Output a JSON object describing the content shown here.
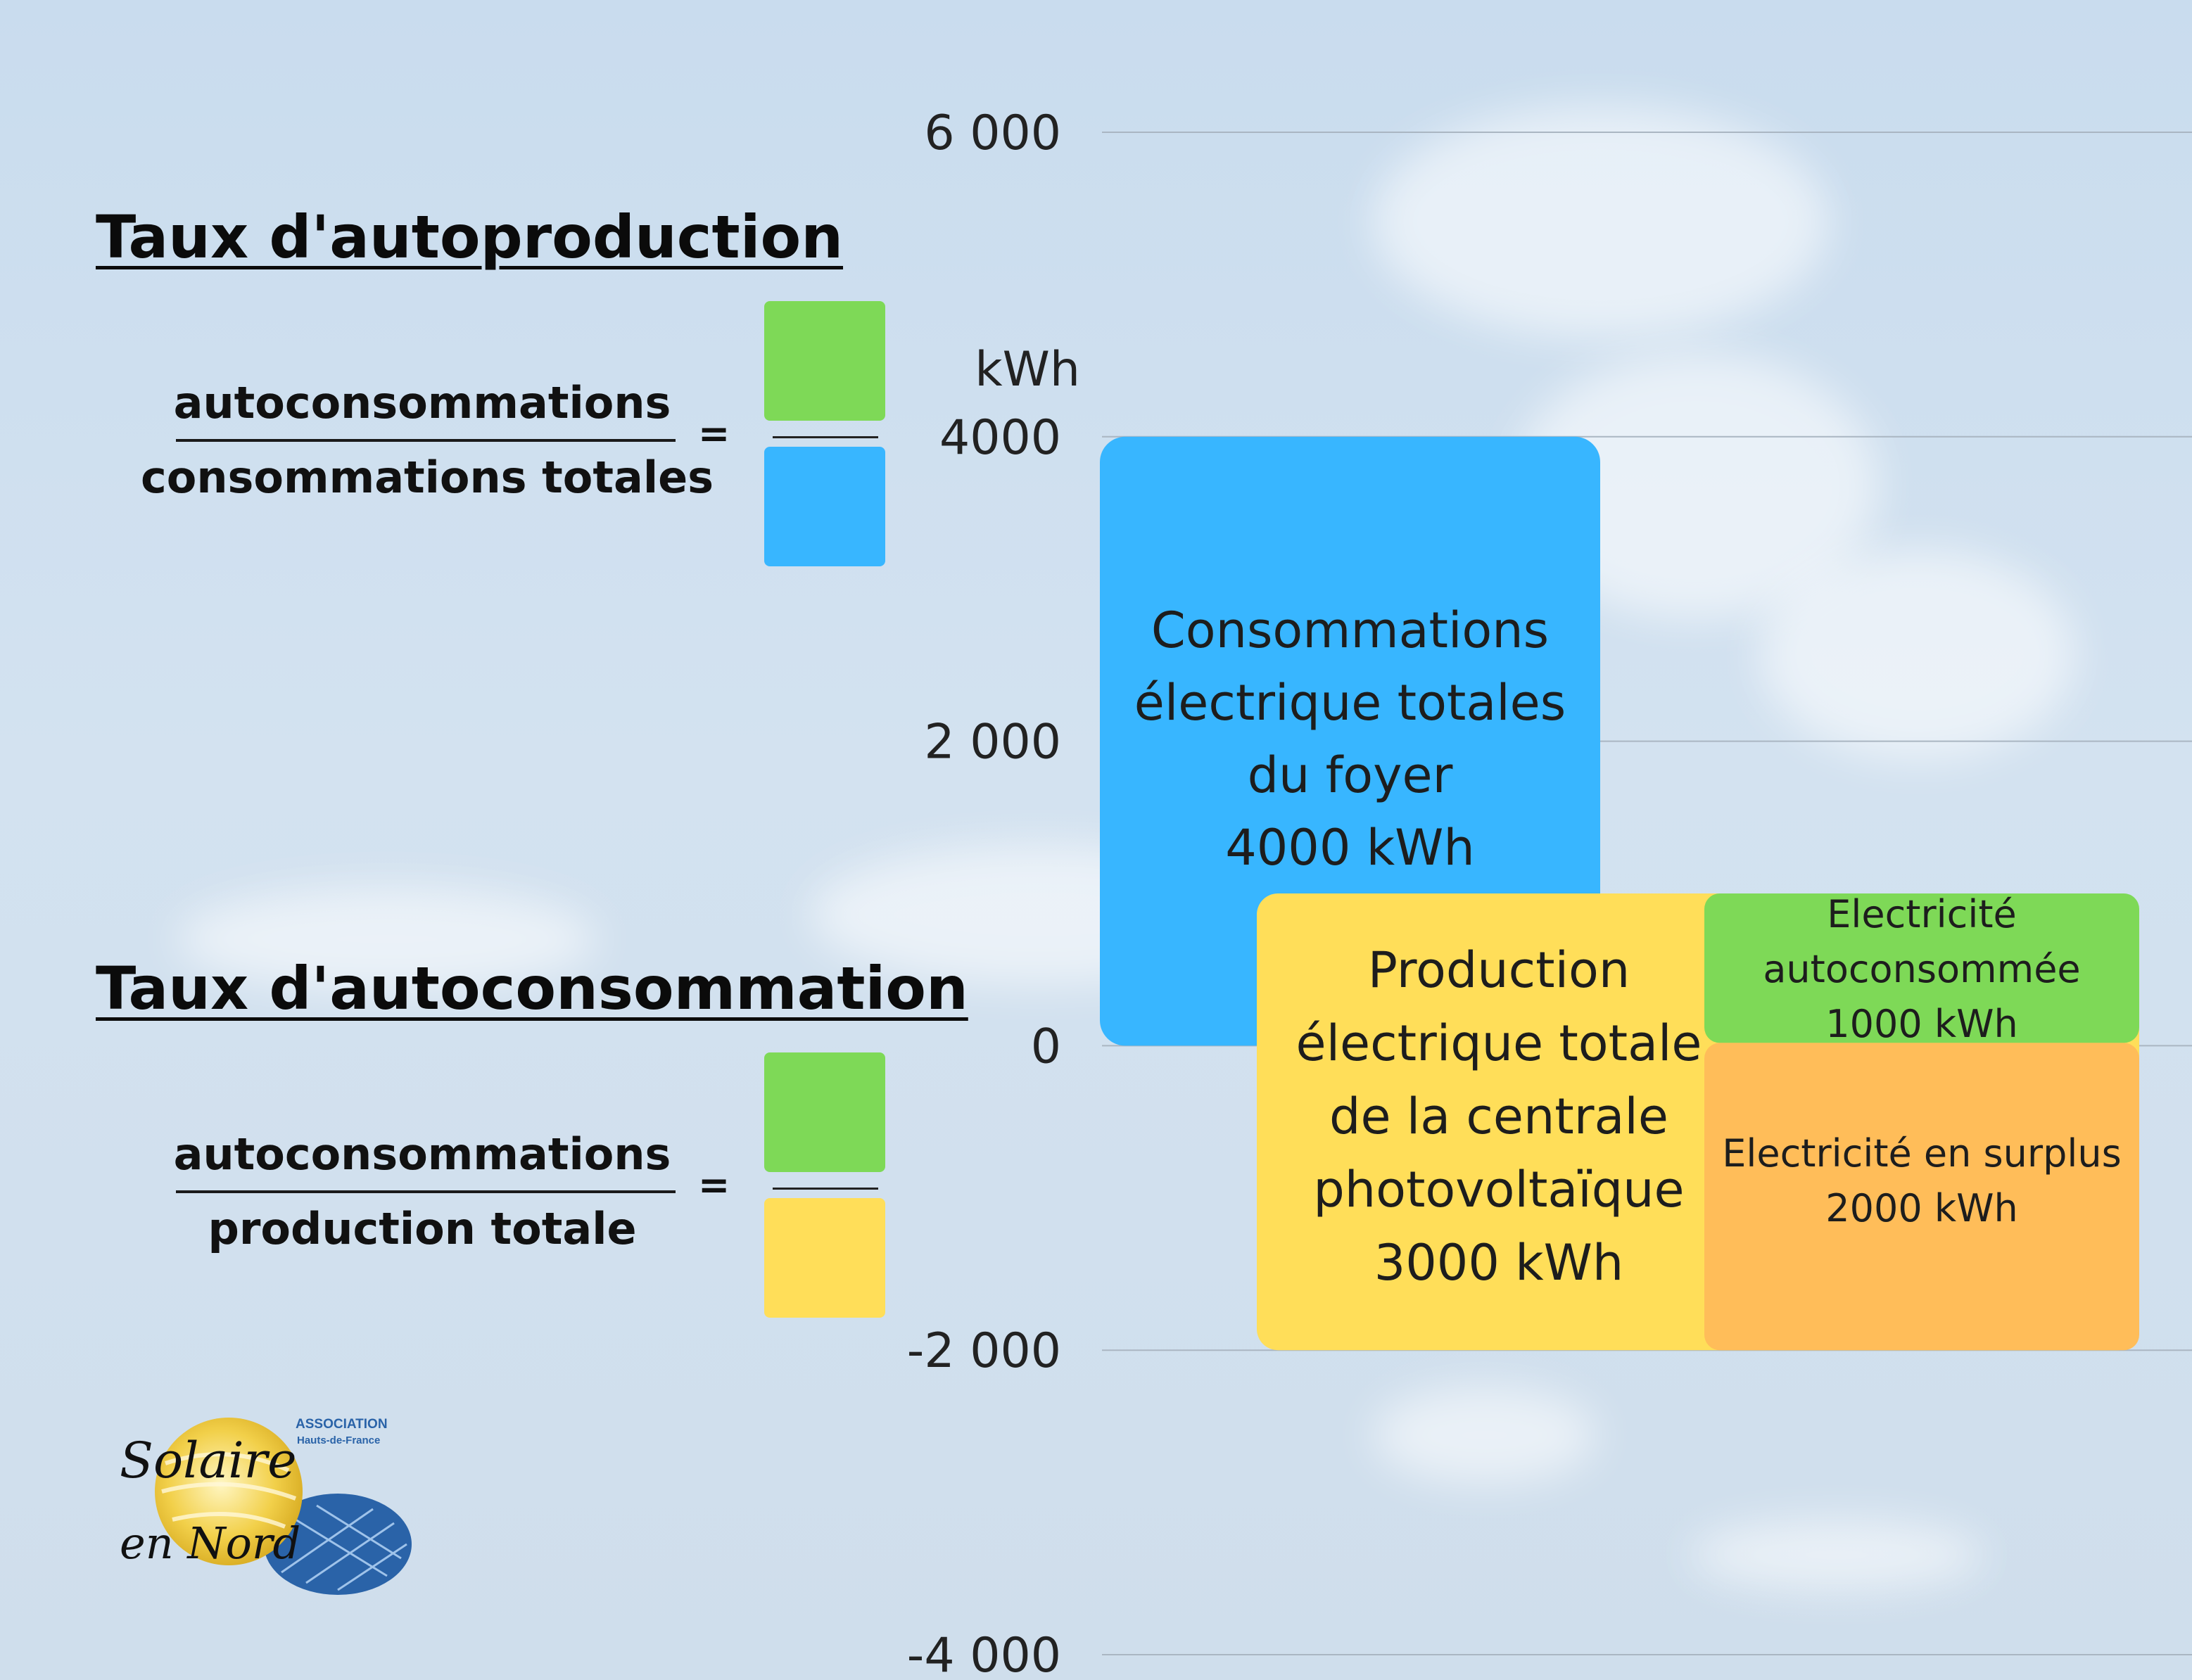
{
  "autoproduction": {
    "title": "Taux d'autoproduction",
    "numerator": "autoconsommations",
    "denominator": "consommations totales",
    "equals": "=",
    "num_color": "#7ed957",
    "den_color": "#38b6ff"
  },
  "autoconsommation": {
    "title": "Taux d'autoconsommation",
    "numerator": "autoconsommations",
    "denominator": "production totale",
    "equals": "=",
    "num_color": "#7ed957",
    "den_color": "#ffde59"
  },
  "logo": {
    "association": "ASSOCIATION",
    "region": "Hauts-de-France",
    "name_line1": "Solaire",
    "name_line2": "en Nord"
  },
  "chart_data": {
    "type": "bar",
    "unit_label": "kWh",
    "ylim": [
      -4000,
      6000
    ],
    "yticks": [
      {
        "value": 6000,
        "label": "6 000"
      },
      {
        "value": 4000,
        "label": "4000"
      },
      {
        "value": 2000,
        "label": "2 000"
      },
      {
        "value": 0,
        "label": "0"
      },
      {
        "value": -2000,
        "label": "-2 000"
      },
      {
        "value": -4000,
        "label": "-4 000"
      }
    ],
    "grid": true,
    "bars": [
      {
        "id": "consommations",
        "value": 4000,
        "lines": [
          "Consommations",
          "électrique totales",
          "du foyer",
          "4000 kWh"
        ],
        "color": "#38b6ff"
      },
      {
        "id": "production",
        "value": 3000,
        "lines": [
          "Production",
          "électrique totale",
          "de la centrale",
          "photovoltaïque",
          "3000 kWh"
        ],
        "color": "#ffde59"
      }
    ],
    "segments": [
      {
        "id": "autoconsommee",
        "value": 1000,
        "lines": [
          "Electricité",
          "autoconsommée",
          "1000 kWh"
        ],
        "color": "#7ed957"
      },
      {
        "id": "surplus",
        "value": 2000,
        "lines": [
          "Electricité en surplus",
          "2000 kWh"
        ],
        "color": "#ffbd59"
      }
    ]
  }
}
